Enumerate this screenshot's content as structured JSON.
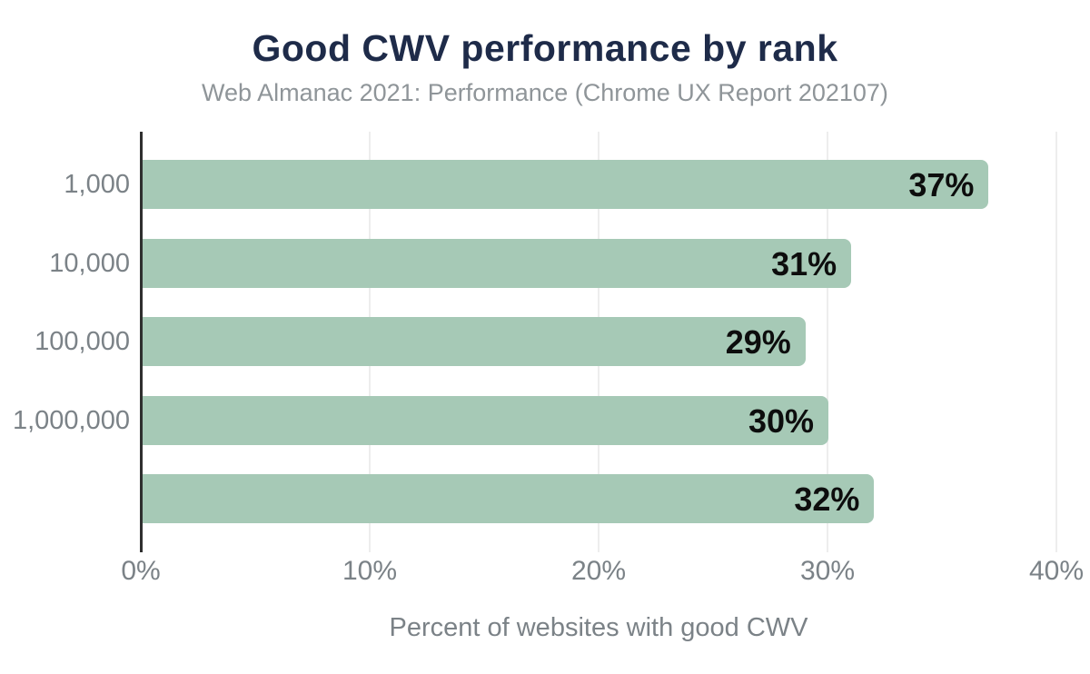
{
  "title": "Good CWV performance by rank",
  "subtitle": "Web Almanac 2021: Performance (Chrome UX Report 202107)",
  "colors": {
    "bar": "#a6c9b6",
    "title_text": "#1e2b49",
    "subtitle_text": "#8f9599",
    "axis_text": "#7b8287",
    "axis_line": "#2f2f2f",
    "gridline": "#ededed",
    "value_label": "#0d0d0d",
    "background": "#ffffff"
  },
  "chart_data": {
    "type": "bar",
    "orientation": "horizontal",
    "title": "Good CWV performance by rank",
    "subtitle": "Web Almanac 2021: Performance (Chrome UX Report 202107)",
    "categories": [
      "1,000",
      "10,000",
      "100,000",
      "1,000,000",
      ""
    ],
    "values": [
      37,
      31,
      29,
      30,
      32
    ],
    "value_labels": [
      "37%",
      "31%",
      "29%",
      "30%",
      "32%"
    ],
    "xlabel": "Percent of websites with good CWV",
    "ylabel": "",
    "xlim": [
      0,
      40
    ],
    "x_ticks": [
      {
        "value": 0,
        "label": "0%"
      },
      {
        "value": 10,
        "label": "10%"
      },
      {
        "value": 20,
        "label": "20%"
      },
      {
        "value": 30,
        "label": "30%"
      },
      {
        "value": 40,
        "label": "40%"
      }
    ],
    "grid": "vertical",
    "legend": "none",
    "value_labels_position": "inside-end"
  }
}
